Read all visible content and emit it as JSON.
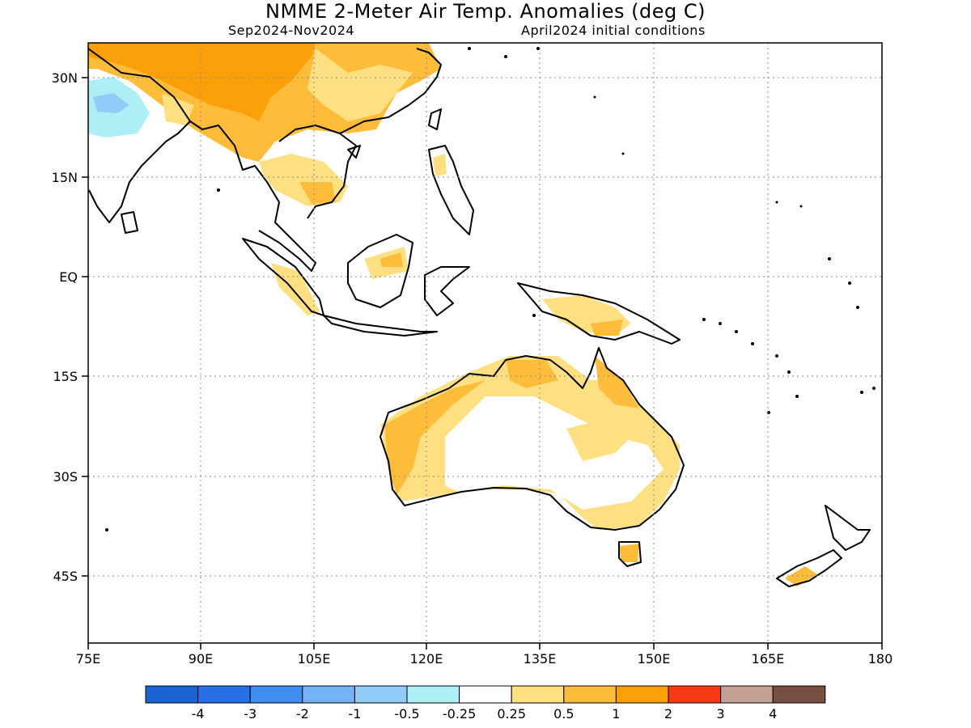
{
  "title": "NMME 2-Meter Air Temp. Anomalies (deg C)",
  "subtitle_left": "Sep2024-Nov2024",
  "subtitle_right": "April2024 initial conditions",
  "map": {
    "lon_range": [
      75,
      180
    ],
    "lat_range": [
      -55,
      35
    ],
    "x_ticks": [
      "75E",
      "90E",
      "105E",
      "120E",
      "135E",
      "150E",
      "165E",
      "180"
    ],
    "y_ticks": [
      "30N",
      "15N",
      "EQ",
      "15S",
      "30S",
      "45S"
    ],
    "grid": "dotted"
  },
  "colorbar": {
    "labels": [
      "-4",
      "-3",
      "-2",
      "-1",
      "-0.5",
      "-0.25",
      "0.25",
      "0.5",
      "1",
      "2",
      "3",
      "4"
    ],
    "colors": [
      "#1a63d1",
      "#2970e8",
      "#3e8ff0",
      "#74b4f6",
      "#92cbf8",
      "#aeeef7",
      "#ffffff",
      "#fee082",
      "#fdbd3b",
      "#fca00a",
      "#f73a15",
      "#c4a094",
      "#784e42"
    ]
  },
  "anomaly_colors": {
    "near_normal": "#ffffff",
    "light_warm": "#fee082",
    "moderate_warm": "#fdbd3b",
    "warm": "#fca00a",
    "light_cool": "#aeeef7",
    "cool": "#92cbf8"
  }
}
